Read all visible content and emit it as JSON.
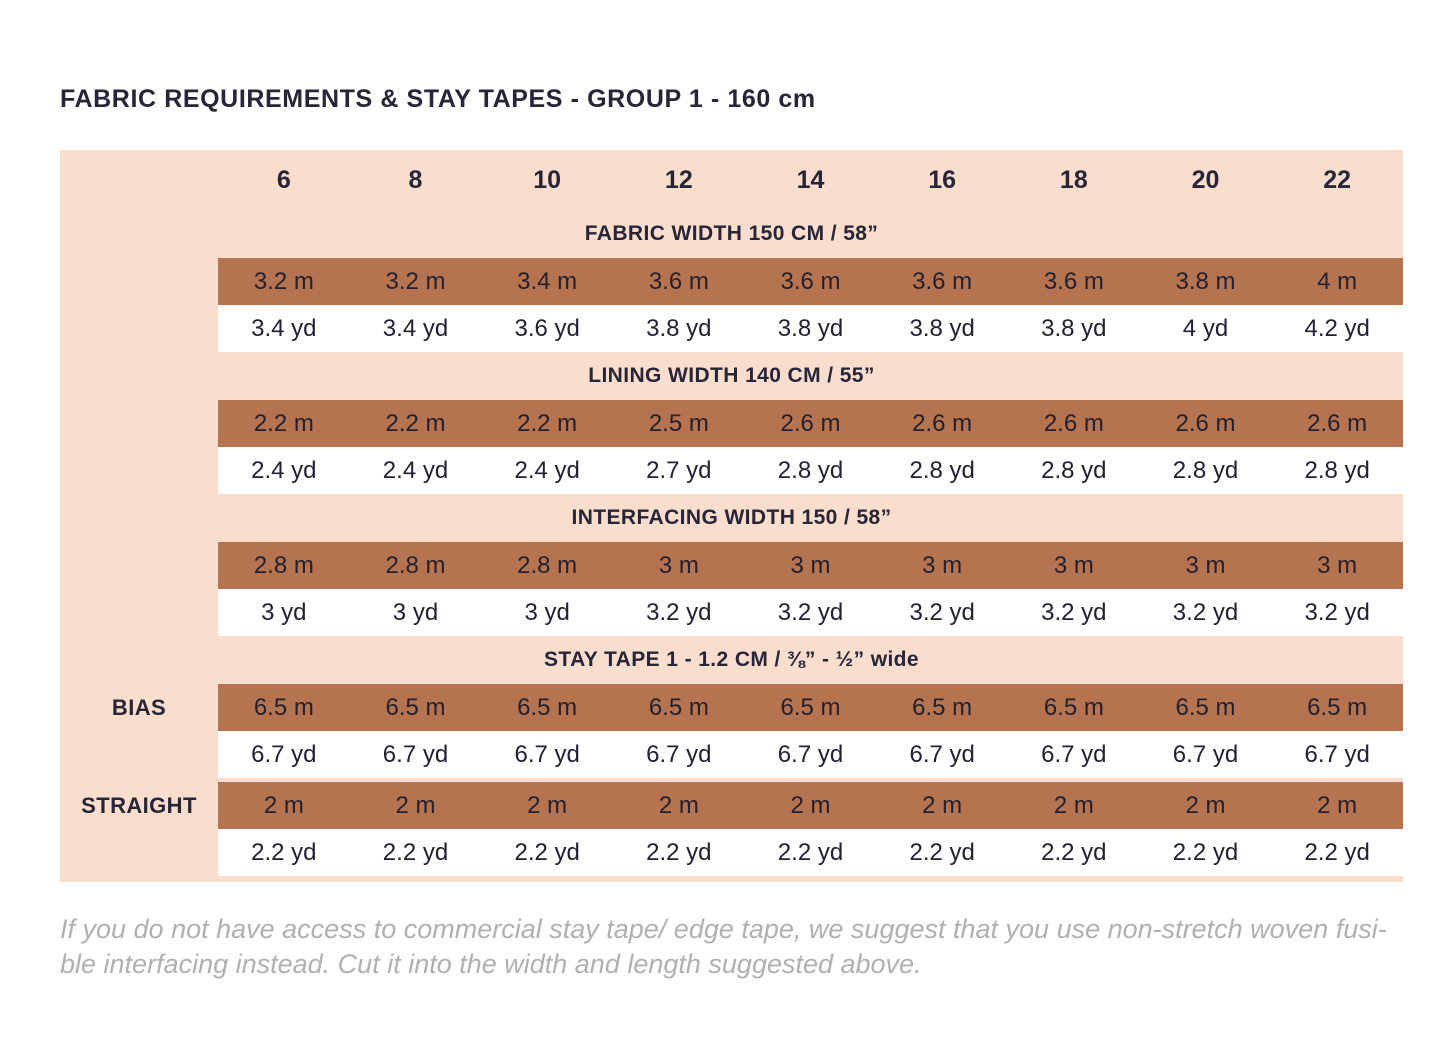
{
  "title": "FABRIC REQUIREMENTS & STAY TAPES - GROUP 1 - 160 cm",
  "colors": {
    "table_background": "#f9ddcd",
    "row_brown": "#b5744f",
    "row_white": "#ffffff",
    "text_dark": "#282539",
    "footnote_gray": "#b2b0ae"
  },
  "table": {
    "sizes": [
      "6",
      "8",
      "10",
      "12",
      "14",
      "16",
      "18",
      "20",
      "22"
    ],
    "sections": [
      {
        "header": "FABRIC WIDTH 150 CM / 58”",
        "rows": [
          {
            "label": "",
            "shade": "brown",
            "values": [
              "3.2 m",
              "3.2 m",
              "3.4 m",
              "3.6 m",
              "3.6 m",
              "3.6 m",
              "3.6 m",
              "3.8 m",
              "4 m"
            ]
          },
          {
            "label": "",
            "shade": "white",
            "values": [
              "3.4 yd",
              "3.4 yd",
              "3.6 yd",
              "3.8 yd",
              "3.8 yd",
              "3.8 yd",
              "3.8 yd",
              "4 yd",
              "4.2 yd"
            ]
          }
        ]
      },
      {
        "header": "LINING WIDTH 140 CM / 55”",
        "rows": [
          {
            "label": "",
            "shade": "brown",
            "values": [
              "2.2 m",
              "2.2 m",
              "2.2 m",
              "2.5 m",
              "2.6 m",
              "2.6 m",
              "2.6 m",
              "2.6 m",
              "2.6 m"
            ]
          },
          {
            "label": "",
            "shade": "white",
            "values": [
              "2.4 yd",
              "2.4 yd",
              "2.4 yd",
              "2.7 yd",
              "2.8 yd",
              "2.8 yd",
              "2.8 yd",
              "2.8 yd",
              "2.8 yd"
            ]
          }
        ]
      },
      {
        "header": "INTERFACING WIDTH 150 / 58”",
        "rows": [
          {
            "label": "",
            "shade": "brown",
            "values": [
              "2.8 m",
              "2.8 m",
              "2.8 m",
              "3 m",
              "3 m",
              "3 m",
              "3 m",
              "3 m",
              "3 m"
            ]
          },
          {
            "label": "",
            "shade": "white",
            "values": [
              "3 yd",
              "3 yd",
              "3 yd",
              "3.2 yd",
              "3.2 yd",
              "3.2 yd",
              "3.2 yd",
              "3.2 yd",
              "3.2 yd"
            ]
          }
        ]
      },
      {
        "header": "STAY TAPE 1 - 1.2 CM / ⅜” - ½” wide",
        "rows": [
          {
            "label": "BIAS",
            "shade": "brown",
            "values": [
              "6.5 m",
              "6.5 m",
              "6.5 m",
              "6.5 m",
              "6.5 m",
              "6.5 m",
              "6.5 m",
              "6.5 m",
              "6.5 m"
            ]
          },
          {
            "label": "",
            "shade": "white",
            "values": [
              "6.7 yd",
              "6.7 yd",
              "6.7 yd",
              "6.7 yd",
              "6.7 yd",
              "6.7 yd",
              "6.7 yd",
              "6.7 yd",
              "6.7 yd"
            ]
          },
          {
            "label": "STRAIGHT",
            "shade": "brown",
            "gap_before": true,
            "values": [
              "2 m",
              "2 m",
              "2 m",
              "2 m",
              "2 m",
              "2 m",
              "2 m",
              "2 m",
              "2 m"
            ]
          },
          {
            "label": "",
            "shade": "white",
            "values": [
              "2.2 yd",
              "2.2 yd",
              "2.2 yd",
              "2.2 yd",
              "2.2 yd",
              "2.2 yd",
              "2.2 yd",
              "2.2 yd",
              "2.2 yd"
            ]
          }
        ]
      }
    ]
  },
  "footnote": {
    "line1": "If you do not have access to commercial stay tape/ edge tape, we suggest that you use non-stretch woven fusi-",
    "line2": "ble interfacing instead. Cut it into the width and length suggested above."
  }
}
